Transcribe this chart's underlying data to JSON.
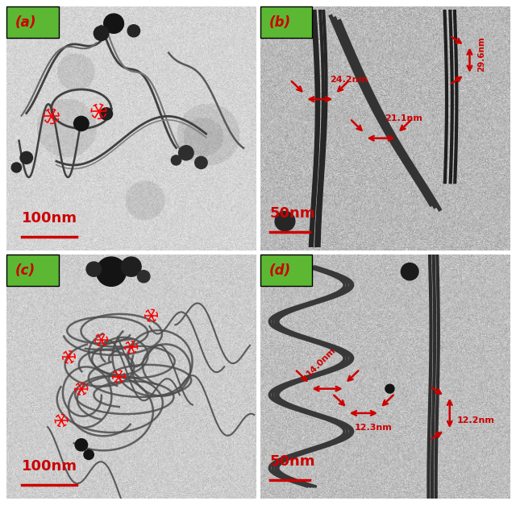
{
  "figure_size": [
    6.4,
    6.27
  ],
  "dpi": 100,
  "background_color": "#ffffff",
  "panel_labels": [
    "(a)",
    "(b)",
    "(c)",
    "(d)"
  ],
  "label_bg_color": "#5cb833",
  "label_text_color": "#cc0000",
  "scale_bar_color": "#cc0000",
  "scale_labels": [
    "100nm",
    "50nm",
    "100nm",
    "50nm"
  ],
  "white_border": 8,
  "panel_rows": 2,
  "panel_cols": 2
}
